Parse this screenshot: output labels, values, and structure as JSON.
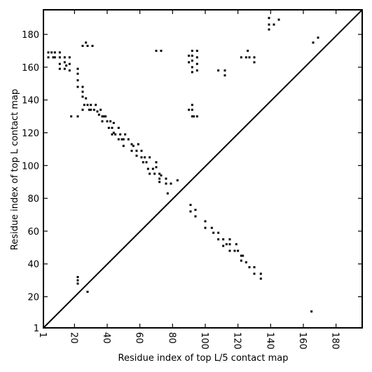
{
  "chart_data": {
    "type": "scatter",
    "title": "",
    "xlabel": "Residue index of top L/5 contact map",
    "ylabel": "Residue index of top L contact map",
    "xlim": [
      1,
      196
    ],
    "ylim": [
      1,
      195
    ],
    "xticks": [
      1,
      20,
      40,
      60,
      80,
      100,
      120,
      140,
      160,
      180
    ],
    "yticks": [
      1,
      20,
      40,
      60,
      80,
      100,
      120,
      140,
      160,
      180
    ],
    "diagonal": true,
    "grid": false,
    "marker_color": "#000000",
    "lower_points": [
      [
        22,
        28
      ],
      [
        22,
        30
      ],
      [
        22,
        32
      ],
      [
        28,
        23
      ],
      [
        72,
        90
      ],
      [
        72,
        92
      ],
      [
        73,
        94
      ],
      [
        76,
        92
      ],
      [
        76,
        89
      ],
      [
        79,
        89
      ],
      [
        77,
        83
      ],
      [
        83,
        91
      ],
      [
        91,
        72
      ],
      [
        91,
        76
      ],
      [
        94,
        69
      ],
      [
        94,
        73
      ],
      [
        100,
        66
      ],
      [
        100,
        62
      ],
      [
        104,
        62
      ],
      [
        105,
        59
      ],
      [
        108,
        59
      ],
      [
        108,
        55
      ],
      [
        111,
        55
      ],
      [
        111,
        51
      ],
      [
        113,
        52
      ],
      [
        115,
        52
      ],
      [
        115,
        55
      ],
      [
        115,
        48
      ],
      [
        118,
        48
      ],
      [
        119,
        52
      ],
      [
        120,
        48
      ],
      [
        122,
        45
      ],
      [
        123,
        45
      ],
      [
        122,
        42
      ],
      [
        125,
        41
      ],
      [
        127,
        38
      ],
      [
        130,
        38
      ],
      [
        130,
        34
      ],
      [
        134,
        34
      ],
      [
        134,
        31
      ],
      [
        165,
        11
      ]
    ],
    "upper_points": [
      [
        4,
        169
      ],
      [
        4,
        166
      ],
      [
        6,
        169
      ],
      [
        7,
        166
      ],
      [
        8,
        169
      ],
      [
        8,
        166
      ],
      [
        11,
        169
      ],
      [
        11,
        166
      ],
      [
        11,
        162
      ],
      [
        11,
        159
      ],
      [
        14,
        159
      ],
      [
        14,
        163
      ],
      [
        14,
        166
      ],
      [
        15,
        161
      ],
      [
        17,
        158
      ],
      [
        17,
        162
      ],
      [
        17,
        166
      ],
      [
        18,
        130
      ],
      [
        22,
        130
      ],
      [
        22,
        148
      ],
      [
        22,
        152
      ],
      [
        22,
        156
      ],
      [
        22,
        159
      ],
      [
        25,
        145
      ],
      [
        25,
        142
      ],
      [
        25,
        148
      ],
      [
        25,
        134
      ],
      [
        26,
        137
      ],
      [
        27,
        141
      ],
      [
        28,
        137
      ],
      [
        25,
        173
      ],
      [
        27,
        175
      ],
      [
        28,
        173
      ],
      [
        31,
        173
      ],
      [
        29,
        134
      ],
      [
        30,
        137
      ],
      [
        30,
        134
      ],
      [
        32,
        134
      ],
      [
        33,
        137
      ],
      [
        34,
        133
      ],
      [
        35,
        131
      ],
      [
        36,
        134
      ],
      [
        37,
        130
      ],
      [
        38,
        130
      ],
      [
        37,
        127
      ],
      [
        39,
        130
      ],
      [
        40,
        127
      ],
      [
        41,
        123
      ],
      [
        42,
        127
      ],
      [
        43,
        123
      ],
      [
        44,
        126
      ],
      [
        43,
        119
      ],
      [
        44,
        120
      ],
      [
        45,
        119
      ],
      [
        47,
        123
      ],
      [
        47,
        116
      ],
      [
        48,
        119
      ],
      [
        49,
        116
      ],
      [
        50,
        116
      ],
      [
        50,
        112
      ],
      [
        51,
        119
      ],
      [
        53,
        116
      ],
      [
        55,
        113
      ],
      [
        55,
        109
      ],
      [
        56,
        112
      ],
      [
        58,
        109
      ],
      [
        58,
        106
      ],
      [
        59,
        113
      ],
      [
        61,
        109
      ],
      [
        61,
        105
      ],
      [
        62,
        102
      ],
      [
        63,
        105
      ],
      [
        64,
        102
      ],
      [
        65,
        98
      ],
      [
        66,
        105
      ],
      [
        66,
        95
      ],
      [
        68,
        98
      ],
      [
        69,
        95
      ],
      [
        70,
        99
      ],
      [
        70,
        102
      ],
      [
        70,
        170
      ],
      [
        73,
        170
      ],
      [
        72,
        95
      ],
      [
        90,
        134
      ],
      [
        90,
        163
      ],
      [
        90,
        167
      ],
      [
        92,
        134
      ],
      [
        92,
        137
      ],
      [
        92,
        130
      ],
      [
        92,
        157
      ],
      [
        92,
        160
      ],
      [
        92,
        164
      ],
      [
        92,
        167
      ],
      [
        92,
        170
      ],
      [
        93,
        130
      ],
      [
        95,
        130
      ],
      [
        95,
        158
      ],
      [
        95,
        162
      ],
      [
        95,
        166
      ],
      [
        95,
        170
      ],
      [
        108,
        158
      ],
      [
        112,
        158
      ],
      [
        112,
        155
      ],
      [
        122,
        166
      ],
      [
        125,
        166
      ],
      [
        126,
        170
      ],
      [
        127,
        166
      ],
      [
        130,
        166
      ],
      [
        130,
        163
      ],
      [
        139,
        183
      ],
      [
        139,
        186
      ],
      [
        139,
        190
      ],
      [
        142,
        186
      ],
      [
        145,
        189
      ],
      [
        166,
        175
      ],
      [
        169,
        178
      ]
    ]
  }
}
